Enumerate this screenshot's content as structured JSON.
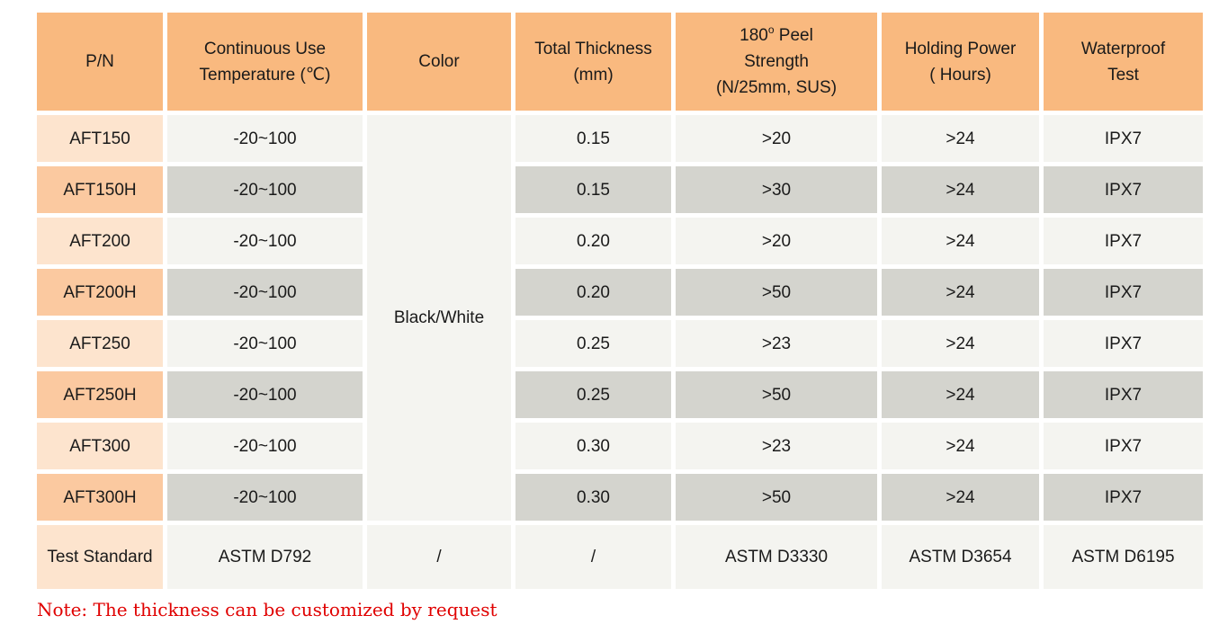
{
  "headers": {
    "pn": "P/N",
    "temp_line1": "Continuous Use",
    "temp_line2": "Temperature (℃)",
    "color": "Color",
    "thick_line1": "Total Thickness",
    "thick_line2": "(mm)",
    "peel_line1_num": "180",
    "peel_line1_sup": "o",
    "peel_line1_rest": " Peel",
    "peel_line2": "Strength",
    "peel_line3": "(N/25mm, SUS)",
    "hold_line1": "Holding Power",
    "hold_line2": "( Hours)",
    "water_line1": "Waterproof",
    "water_line2": "Test"
  },
  "color_value": "Black/White",
  "rows": [
    {
      "pn": "AFT150",
      "temp": "-20~100",
      "thickness": "0.15",
      "peel": ">20",
      "holding": ">24",
      "waterproof": "IPX7"
    },
    {
      "pn": "AFT150H",
      "temp": "-20~100",
      "thickness": "0.15",
      "peel": ">30",
      "holding": ">24",
      "waterproof": "IPX7"
    },
    {
      "pn": "AFT200",
      "temp": "-20~100",
      "thickness": "0.20",
      "peel": ">20",
      "holding": ">24",
      "waterproof": "IPX7"
    },
    {
      "pn": "AFT200H",
      "temp": "-20~100",
      "thickness": "0.20",
      "peel": ">50",
      "holding": ">24",
      "waterproof": "IPX7"
    },
    {
      "pn": "AFT250",
      "temp": "-20~100",
      "thickness": "0.25",
      "peel": ">23",
      "holding": ">24",
      "waterproof": "IPX7"
    },
    {
      "pn": "AFT250H",
      "temp": "-20~100",
      "thickness": "0.25",
      "peel": ">50",
      "holding": ">24",
      "waterproof": "IPX7"
    },
    {
      "pn": "AFT300",
      "temp": "-20~100",
      "thickness": "0.30",
      "peel": ">23",
      "holding": ">24",
      "waterproof": "IPX7"
    },
    {
      "pn": "AFT300H",
      "temp": "-20~100",
      "thickness": "0.30",
      "peel": ">50",
      "holding": ">24",
      "waterproof": "IPX7"
    }
  ],
  "standard": {
    "pn": "Test Standard",
    "temp": "ASTM D792",
    "color": "/",
    "thickness": "/",
    "peel": "ASTM D3330",
    "holding": "ASTM D3654",
    "waterproof": "ASTM D6195"
  },
  "note": "Note: The thickness can be customized by request",
  "colors": {
    "header": "#F9B97F",
    "pn_light": "#FDE4CE",
    "pn_dark": "#FBC9A0",
    "cell_light": "#F4F4F0",
    "cell_dark": "#D4D4CE",
    "note": "#E00000"
  }
}
